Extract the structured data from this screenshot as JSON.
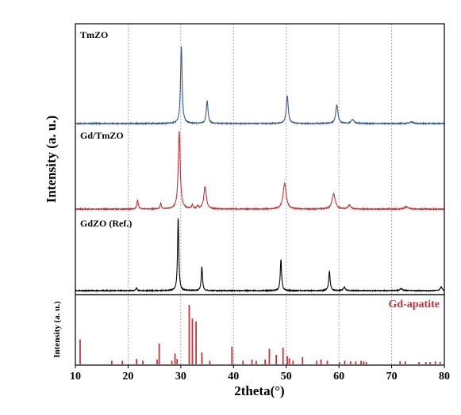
{
  "chart_data": [
    {
      "type": "line",
      "title": "",
      "xlabel": "",
      "ylabel": "Intensity (a. u.)",
      "xlim": [
        10,
        80
      ],
      "grid": "vertical dashed at x ticks",
      "series": [
        {
          "name": "TmZO",
          "color": "#3b5b8c",
          "baseline": 0.0,
          "peaks": [
            [
              30.1,
              1.0,
              0.18
            ],
            [
              35.0,
              0.29,
              0.2
            ],
            [
              50.2,
              0.36,
              0.22
            ],
            [
              59.6,
              0.24,
              0.25
            ],
            [
              62.6,
              0.05,
              0.3
            ],
            [
              73.8,
              0.02,
              0.4
            ]
          ]
        },
        {
          "name": "Gd/TmZO",
          "color": "#c0353a",
          "baseline": 0.0,
          "peaks": [
            [
              21.8,
              0.12,
              0.15
            ],
            [
              26.2,
              0.07,
              0.15
            ],
            [
              29.7,
              1.0,
              0.22
            ],
            [
              32.2,
              0.05,
              0.15
            ],
            [
              33.2,
              0.04,
              0.15
            ],
            [
              34.6,
              0.29,
              0.28
            ],
            [
              49.7,
              0.33,
              0.35
            ],
            [
              59.0,
              0.2,
              0.35
            ],
            [
              62.0,
              0.05,
              0.3
            ],
            [
              72.8,
              0.03,
              0.4
            ]
          ]
        },
        {
          "name": "GdZO (Ref.)",
          "color": "#000000",
          "baseline": 0.0,
          "peaks": [
            [
              21.6,
              0.04,
              0.15
            ],
            [
              29.5,
              1.0,
              0.14
            ],
            [
              34.0,
              0.33,
              0.14
            ],
            [
              49.0,
              0.43,
              0.15
            ],
            [
              58.2,
              0.27,
              0.16
            ],
            [
              61.0,
              0.05,
              0.2
            ],
            [
              71.8,
              0.03,
              0.25
            ],
            [
              79.4,
              0.05,
              0.2
            ]
          ]
        }
      ]
    },
    {
      "type": "bar",
      "title": "Gd-apatite",
      "xlabel": "2theta(°)",
      "ylabel": "Intensity (a. u.)",
      "xlim": [
        10,
        80
      ],
      "x_ticks": [
        "10",
        "20",
        "30",
        "40",
        "50",
        "60",
        "70",
        "80"
      ],
      "color": "#c0353a",
      "sticks": [
        [
          10.9,
          0.42
        ],
        [
          16.9,
          0.06
        ],
        [
          18.9,
          0.06
        ],
        [
          21.6,
          0.09
        ],
        [
          22.8,
          0.06
        ],
        [
          25.5,
          0.08
        ],
        [
          25.9,
          0.35
        ],
        [
          28.3,
          0.06
        ],
        [
          28.9,
          0.18
        ],
        [
          29.3,
          0.09
        ],
        [
          31.6,
          1.0
        ],
        [
          32.2,
          0.77
        ],
        [
          32.9,
          0.72
        ],
        [
          34.0,
          0.2
        ],
        [
          35.5,
          0.06
        ],
        [
          39.7,
          0.3
        ],
        [
          41.8,
          0.06
        ],
        [
          43.5,
          0.08
        ],
        [
          44.3,
          0.06
        ],
        [
          46.0,
          0.08
        ],
        [
          46.8,
          0.26
        ],
        [
          48.1,
          0.16
        ],
        [
          49.4,
          0.28
        ],
        [
          50.2,
          0.14
        ],
        [
          50.6,
          0.1
        ],
        [
          51.3,
          0.06
        ],
        [
          53.1,
          0.12
        ],
        [
          55.8,
          0.06
        ],
        [
          56.6,
          0.08
        ],
        [
          57.8,
          0.06
        ],
        [
          60.1,
          0.04
        ],
        [
          61.1,
          0.06
        ],
        [
          62.2,
          0.05
        ],
        [
          63.2,
          0.05
        ],
        [
          64.2,
          0.06
        ],
        [
          64.7,
          0.05
        ],
        [
          65.2,
          0.04
        ],
        [
          71.6,
          0.05
        ],
        [
          72.6,
          0.05
        ],
        [
          75.2,
          0.04
        ],
        [
          76.5,
          0.04
        ],
        [
          77.3,
          0.04
        ],
        [
          78.3,
          0.05
        ],
        [
          79.2,
          0.04
        ]
      ]
    }
  ]
}
